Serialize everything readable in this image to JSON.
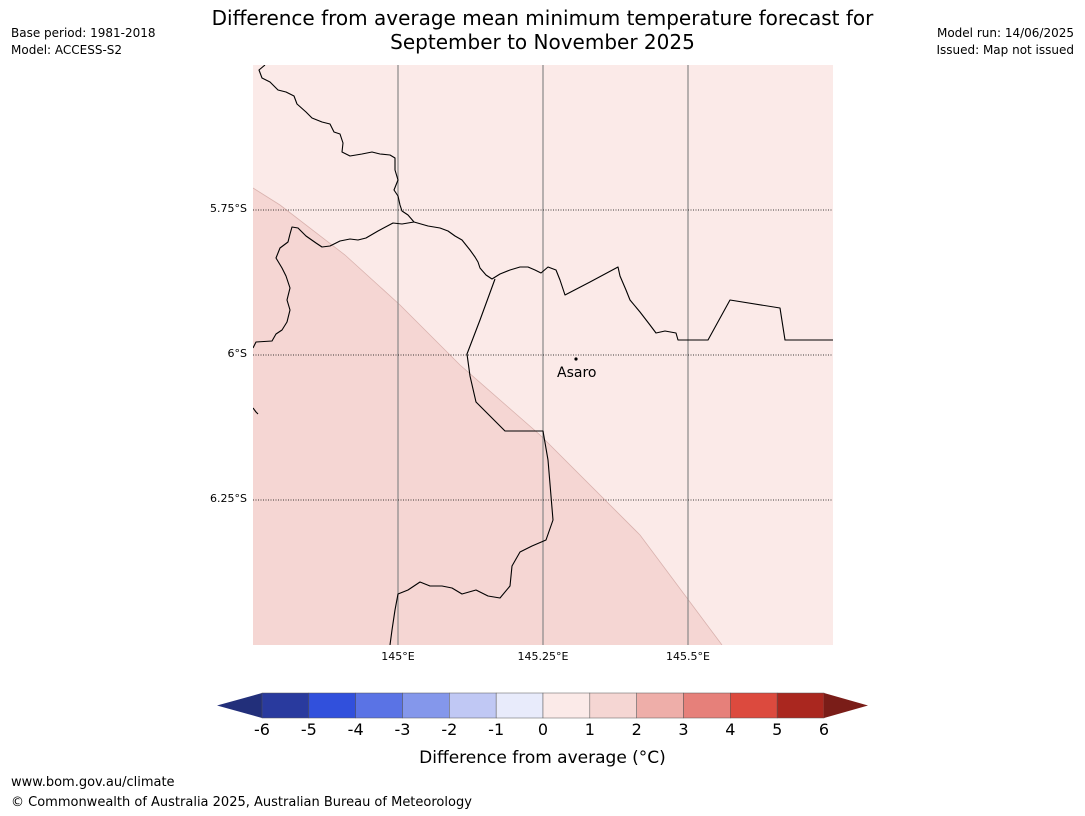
{
  "title": {
    "line1": "Difference from average mean minimum temperature forecast for",
    "line2": "September to November 2025"
  },
  "meta_left": {
    "base_period": "Base period: 1981-2018",
    "model": "Model: ACCESS-S2"
  },
  "meta_right": {
    "model_run": "Model run: 14/06/2025",
    "issued": "Issued: Map not issued"
  },
  "map": {
    "lat_labels": [
      "5.75°S",
      "6°S",
      "6.25°S"
    ],
    "lon_labels": [
      "145°E",
      "145.25°E",
      "145.5°E"
    ],
    "place": {
      "name": "Asaro"
    },
    "colors": {
      "band_0_1": "#fbeae8",
      "band_1_2": "#f5d6d3"
    }
  },
  "colorbar": {
    "title": "Difference from average ($^\\circ$C)",
    "title_display": "Difference from average (°C)",
    "ticks": [
      "-6",
      "-5",
      "-4",
      "-3",
      "-2",
      "-1",
      "0",
      "1",
      "2",
      "3",
      "4",
      "5",
      "6"
    ],
    "colors": [
      "#293a9e",
      "#3150dc",
      "#5a73e5",
      "#8497eb",
      "#c0c8f4",
      "#e8ebfb",
      "#fbeae8",
      "#f5d6d3",
      "#eeaea9",
      "#e6807a",
      "#dc4a3e",
      "#aa271f"
    ],
    "extend_low": "#222f7a",
    "extend_high": "#7a1d18"
  },
  "footer": {
    "url": "www.bom.gov.au/climate",
    "copyright": "© Commonwealth of Australia 2025, Australian Bureau of Meteorology"
  }
}
